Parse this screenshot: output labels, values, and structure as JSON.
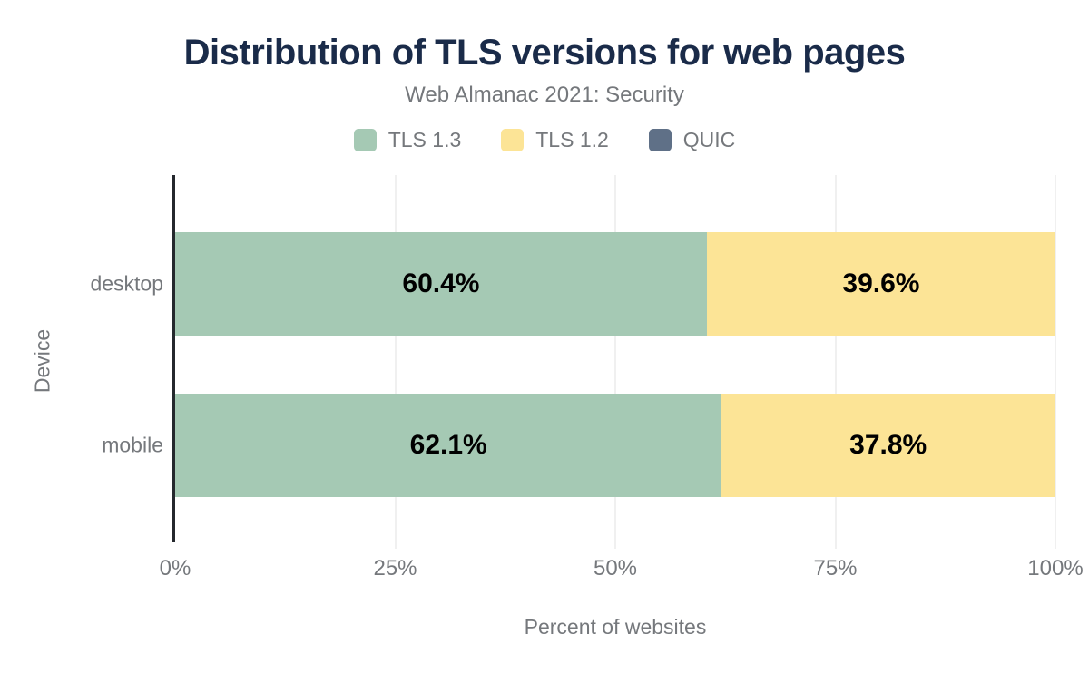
{
  "title": "Distribution of TLS versions for web pages",
  "subtitle": "Web Almanac 2021: Security",
  "legend": [
    {
      "label": "TLS 1.3",
      "color": "#a5c9b4"
    },
    {
      "label": "TLS 1.2",
      "color": "#fce496"
    },
    {
      "label": "QUIC",
      "color": "#5f7087"
    }
  ],
  "colors": {
    "title": "#1a2b49",
    "text_gray": "#75787c",
    "axis_line": "#24282d",
    "gridline": "#f0f0f0",
    "bar_label": "#000000"
  },
  "chart_data": {
    "type": "bar",
    "orientation": "horizontal",
    "stacked": true,
    "title": "Distribution of TLS versions for web pages",
    "subtitle": "Web Almanac 2021: Security",
    "xlabel": "Percent of websites",
    "ylabel": "Device",
    "categories": [
      "desktop",
      "mobile"
    ],
    "series": [
      {
        "name": "TLS 1.3",
        "color": "#a5c9b4",
        "values": [
          60.4,
          62.1
        ],
        "data_labels": [
          "60.4%",
          "62.1%"
        ]
      },
      {
        "name": "TLS 1.2",
        "color": "#fce496",
        "values": [
          39.6,
          37.8
        ],
        "data_labels": [
          "39.6%",
          "37.8%"
        ]
      },
      {
        "name": "QUIC",
        "color": "#5f7087",
        "values": [
          0.0,
          0.1
        ],
        "data_labels": [
          "",
          ""
        ]
      }
    ],
    "xlim": [
      0,
      100
    ],
    "x_ticks": [
      "0%",
      "25%",
      "50%",
      "75%",
      "100%"
    ],
    "x_tick_values": [
      0,
      25,
      50,
      75,
      100
    ],
    "grid": true,
    "legend_position": "top"
  }
}
